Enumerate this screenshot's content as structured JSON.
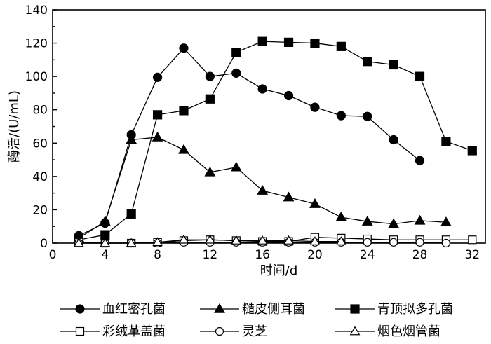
{
  "chart_data": {
    "type": "line",
    "xlabel": "时间/d",
    "ylabel": "酶活/(U/mL)",
    "xlim": [
      0,
      33
    ],
    "ylim": [
      0,
      140
    ],
    "xticks": [
      0,
      4,
      8,
      12,
      16,
      20,
      24,
      28,
      32
    ],
    "yticks": [
      0,
      20,
      40,
      60,
      80,
      100,
      120,
      140
    ],
    "grid": false,
    "legend_placement": "bottom",
    "series": [
      {
        "name": "血红密孔菌",
        "marker": "circle",
        "filled": true,
        "x": [
          2,
          4,
          6,
          8,
          10,
          12,
          14,
          16,
          18,
          20,
          22,
          24,
          26,
          28
        ],
        "y": [
          4.5,
          12,
          65,
          99.5,
          117,
          100,
          102,
          92.5,
          88.5,
          81.5,
          76.5,
          76,
          62,
          49.5
        ]
      },
      {
        "name": "糙皮侧耳菌",
        "marker": "triangle",
        "filled": true,
        "x": [
          2,
          4,
          6,
          8,
          10,
          12,
          14,
          16,
          18,
          20,
          22,
          24,
          26,
          28,
          30
        ],
        "y": [
          3,
          13,
          62,
          63.5,
          56,
          42.5,
          45.5,
          31.5,
          27.5,
          23.5,
          15.5,
          13,
          11.5,
          13.5,
          12.5
        ]
      },
      {
        "name": "青顶拟多孔菌",
        "marker": "square",
        "filled": true,
        "x": [
          2,
          4,
          6,
          8,
          10,
          12,
          14,
          16,
          18,
          20,
          22,
          24,
          26,
          28,
          30,
          32
        ],
        "y": [
          2,
          5,
          17.5,
          77,
          79.5,
          86.5,
          114.5,
          121,
          120.5,
          120,
          118,
          109,
          107,
          100,
          61,
          55.5
        ]
      },
      {
        "name": "彩绒革盖菌",
        "marker": "square",
        "filled": false,
        "x": [
          2,
          4,
          6,
          8,
          10,
          12,
          14,
          16,
          18,
          20,
          22,
          24,
          26,
          28,
          30,
          32
        ],
        "y": [
          0.5,
          0,
          0,
          0.5,
          1.5,
          2,
          1.5,
          1,
          1,
          3.5,
          3,
          2.5,
          2,
          2,
          2,
          2
        ]
      },
      {
        "name": "灵芝",
        "marker": "circle",
        "filled": false,
        "x": [
          2,
          4,
          6,
          8,
          10,
          12,
          14,
          16,
          18,
          20,
          22,
          24,
          26,
          28,
          30
        ],
        "y": [
          0,
          0,
          0,
          0,
          0.5,
          0.5,
          0.5,
          0.5,
          0.5,
          0.5,
          0.5,
          0.5,
          0.5,
          0.5,
          0
        ]
      },
      {
        "name": "烟色烟管菌",
        "marker": "triangle",
        "filled": false,
        "x": [
          2,
          4,
          6,
          8,
          10,
          12,
          14,
          16,
          18,
          20,
          22
        ],
        "y": [
          0,
          0,
          0,
          0.5,
          2,
          2,
          1.5,
          1.5,
          1.5,
          1,
          1
        ]
      }
    ]
  }
}
